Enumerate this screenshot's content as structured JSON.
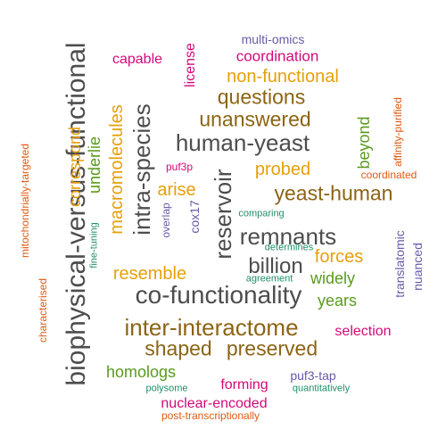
{
  "palette": {
    "gray": "#4d4d4d",
    "brown": "#8c6414",
    "gold": "#e6a00a",
    "green": "#5a9a1e",
    "magenta": "#d4087a",
    "purple": "#6a5aa8",
    "orange": "#e05a10",
    "teal": "#209068"
  },
  "words": [
    {
      "text": "biophysical-versus-functional",
      "color": "#4d4d4d"
    },
    {
      "text": "co-functionality",
      "color": "#4d4d4d"
    },
    {
      "text": "inter-interactome",
      "color": "#8c6414"
    },
    {
      "text": "human-yeast",
      "color": "#4d4d4d"
    },
    {
      "text": "intra-species",
      "color": "#4d4d4d"
    },
    {
      "text": "reservoir",
      "color": "#4d4d4d"
    },
    {
      "text": "remnants",
      "color": "#4d4d4d"
    },
    {
      "text": "billion",
      "color": "#4d4d4d"
    },
    {
      "text": "yeast-human",
      "color": "#8c6414"
    },
    {
      "text": "unanswered",
      "color": "#8c6414"
    },
    {
      "text": "questions",
      "color": "#8c6414"
    },
    {
      "text": "macromolecules",
      "color": "#e6a00a"
    },
    {
      "text": "shaped",
      "color": "#8c6414"
    },
    {
      "text": "preserved",
      "color": "#8c6414"
    },
    {
      "text": "non-functional",
      "color": "#e6a00a"
    },
    {
      "text": "probed",
      "color": "#e6a00a"
    },
    {
      "text": "resemble",
      "color": "#e6a00a"
    },
    {
      "text": "forces",
      "color": "#e6a00a"
    },
    {
      "text": "arise",
      "color": "#e6a00a"
    },
    {
      "text": "correspond",
      "color": "#e6a00a"
    },
    {
      "text": "widely",
      "color": "#5a9a1e"
    },
    {
      "text": "years",
      "color": "#5a9a1e"
    },
    {
      "text": "homologs",
      "color": "#5a9a1e"
    },
    {
      "text": "beyond",
      "color": "#5a9a1e"
    },
    {
      "text": "underlie",
      "color": "#5a9a1e"
    },
    {
      "text": "coordination",
      "color": "#d4087a"
    },
    {
      "text": "capable",
      "color": "#d4087a"
    },
    {
      "text": "license",
      "color": "#d4087a"
    },
    {
      "text": "selection",
      "color": "#d4087a"
    },
    {
      "text": "forming",
      "color": "#d4087a"
    },
    {
      "text": "nuclear-encoded",
      "color": "#d4087a"
    },
    {
      "text": "puf3p",
      "color": "#d4087a"
    },
    {
      "text": "multi-omics",
      "color": "#6a5aa8"
    },
    {
      "text": "translatomic",
      "color": "#6a5aa8"
    },
    {
      "text": "nuanced",
      "color": "#6a5aa8"
    },
    {
      "text": "puf3-tap",
      "color": "#6a5aa8"
    },
    {
      "text": "cox17",
      "color": "#6a5aa8"
    },
    {
      "text": "overlap",
      "color": "#6a5aa8"
    },
    {
      "text": "affinity-purified",
      "color": "#e05a10"
    },
    {
      "text": "coordinated",
      "color": "#e05a10"
    },
    {
      "text": "mitochondrially-targeted",
      "color": "#e05a10"
    },
    {
      "text": "characterised",
      "color": "#e05a10"
    },
    {
      "text": "post-transcriptionally",
      "color": "#e05a10"
    },
    {
      "text": "fine-tuning",
      "color": "#209068"
    },
    {
      "text": "comparing",
      "color": "#209068"
    },
    {
      "text": "determines",
      "color": "#209068"
    },
    {
      "text": "agreement",
      "color": "#209068"
    },
    {
      "text": "polysome",
      "color": "#209068"
    },
    {
      "text": "quantitatively",
      "color": "#209068"
    }
  ]
}
